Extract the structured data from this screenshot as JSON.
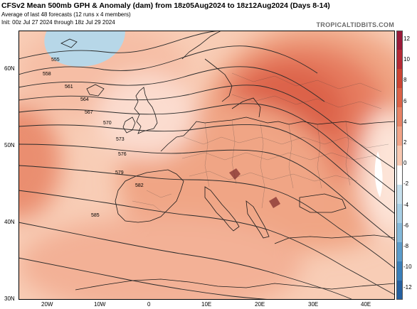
{
  "header": {
    "title": "CFSv2 Mean 500mb GPH & Anomaly (dam) from 18z05Aug2024 to 18z12Aug2024 (Days 8-14)",
    "subtitle1": "Average of last 48 forecasts (12 runs x 4 members)",
    "subtitle2": "Init: 00z Jul 27 2024 through 18z Jul 29 2024",
    "brand": "TROPICALTIDBITS.COM"
  },
  "map": {
    "lat_labels": [
      "60N",
      "50N",
      "40N",
      "30N"
    ],
    "lon_labels": [
      "20W",
      "10W",
      "0",
      "10E",
      "20E",
      "30E",
      "40E"
    ],
    "contour_labels": [
      "555",
      "558",
      "561",
      "564",
      "567",
      "570",
      "573",
      "576",
      "579",
      "582",
      "585"
    ],
    "colorbar": {
      "labels": [
        "12",
        "10",
        "8",
        "6",
        "4",
        "2",
        "0",
        "-2",
        "-4",
        "-6",
        "-8",
        "-10",
        "-12"
      ],
      "colors": [
        "#9a1a3a",
        "#b52a35",
        "#cc4433",
        "#dc6247",
        "#e88366",
        "#f2a488",
        "#f9c9b2",
        "#ffffff",
        "#c8e1ee",
        "#a9d0e6",
        "#84b9da",
        "#5b9ccb",
        "#3a7fba",
        "#2560a0"
      ]
    }
  }
}
